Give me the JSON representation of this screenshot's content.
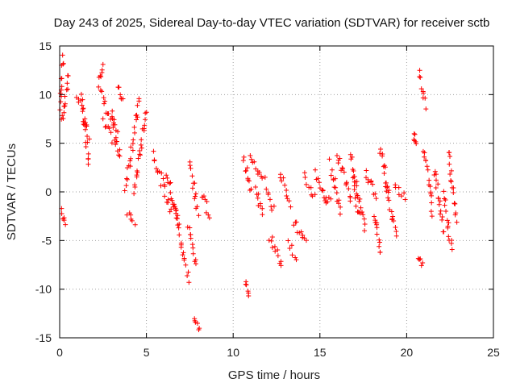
{
  "chart_data": {
    "type": "scatter",
    "title": "Day 243 of 2025, Sidereal Day-to-day VTEC variation (SDTVAR) for receiver sctb",
    "xlabel": "GPS time / hours",
    "ylabel": "SDTVAR / TECUs",
    "xlim": [
      0,
      25
    ],
    "ylim": [
      -15,
      15
    ],
    "xticks": [
      0,
      5,
      10,
      15,
      20,
      25
    ],
    "yticks": [
      -15,
      -10,
      -5,
      0,
      5,
      10,
      15
    ],
    "grid": true,
    "marker": "+",
    "color": "#ff0000",
    "series_segments": [
      {
        "name": "s1",
        "x": [
          0.0,
          0.18
        ],
        "y": [
          7.5,
          14.0
        ]
      },
      {
        "name": "s2",
        "x": [
          0.1,
          0.35
        ],
        "y": [
          -2.0,
          -3.2
        ]
      },
      {
        "name": "s3",
        "x": [
          0.15,
          0.5
        ],
        "y": [
          7.0,
          12.0
        ]
      },
      {
        "name": "s4",
        "x": [
          1.0,
          1.7
        ],
        "y": [
          10.0,
          5.5
        ]
      },
      {
        "name": "s5",
        "x": [
          1.3,
          1.7
        ],
        "y": [
          9.5,
          3.0
        ]
      },
      {
        "name": "s6",
        "x": [
          2.3,
          2.5
        ],
        "y": [
          12.0,
          13.2
        ]
      },
      {
        "name": "s7",
        "x": [
          2.3,
          3.3
        ],
        "y": [
          10.5,
          6.0
        ]
      },
      {
        "name": "s8",
        "x": [
          2.5,
          3.2
        ],
        "y": [
          7.0,
          5.0
        ]
      },
      {
        "name": "s9",
        "x": [
          3.0,
          3.5
        ],
        "y": [
          8.0,
          3.5
        ]
      },
      {
        "name": "s10",
        "x": [
          3.4,
          3.6
        ],
        "y": [
          10.5,
          9.5
        ]
      },
      {
        "name": "s11",
        "x": [
          3.8,
          4.6
        ],
        "y": [
          0.5,
          9.5
        ]
      },
      {
        "name": "s12",
        "x": [
          3.9,
          4.3
        ],
        "y": [
          -2.0,
          -3.5
        ]
      },
      {
        "name": "s13",
        "x": [
          4.3,
          5.0
        ],
        "y": [
          0.0,
          8.5
        ]
      },
      {
        "name": "s14",
        "x": [
          5.4,
          6.4
        ],
        "y": [
          4.0,
          -2.0
        ]
      },
      {
        "name": "s15",
        "x": [
          6.2,
          6.8
        ],
        "y": [
          2.0,
          -3.0
        ]
      },
      {
        "name": "s16",
        "x": [
          6.6,
          7.4
        ],
        "y": [
          -1.0,
          -9.0
        ]
      },
      {
        "name": "s17",
        "x": [
          7.4,
          7.9
        ],
        "y": [
          -3.5,
          -7.5
        ]
      },
      {
        "name": "s18",
        "x": [
          7.5,
          8.0
        ],
        "y": [
          3.0,
          -2.0
        ]
      },
      {
        "name": "s19",
        "x": [
          7.8,
          8.0
        ],
        "y": [
          -13.0,
          -14.2
        ]
      },
      {
        "name": "s20",
        "x": [
          8.2,
          8.6
        ],
        "y": [
          0.0,
          -2.5
        ]
      },
      {
        "name": "s21",
        "x": [
          10.6,
          11.0
        ],
        "y": [
          3.5,
          0.0
        ]
      },
      {
        "name": "s22",
        "x": [
          10.7,
          10.9
        ],
        "y": [
          -9.5,
          -10.3
        ]
      },
      {
        "name": "s23",
        "x": [
          11.0,
          11.8
        ],
        "y": [
          4.0,
          1.0
        ]
      },
      {
        "name": "s24",
        "x": [
          11.3,
          11.7
        ],
        "y": [
          0.5,
          -2.5
        ]
      },
      {
        "name": "s25",
        "x": [
          11.9,
          12.3
        ],
        "y": [
          0.0,
          -2.0
        ]
      },
      {
        "name": "s26",
        "x": [
          12.1,
          12.8
        ],
        "y": [
          -4.5,
          -7.5
        ]
      },
      {
        "name": "s27",
        "x": [
          12.7,
          13.3
        ],
        "y": [
          2.0,
          -1.0
        ]
      },
      {
        "name": "s28",
        "x": [
          13.2,
          13.6
        ],
        "y": [
          -5.5,
          -6.5
        ]
      },
      {
        "name": "s29",
        "x": [
          13.5,
          14.2
        ],
        "y": [
          -3.0,
          -5.5
        ]
      },
      {
        "name": "s30",
        "x": [
          14.1,
          14.7
        ],
        "y": [
          1.5,
          -0.5
        ]
      },
      {
        "name": "s31",
        "x": [
          14.7,
          15.3
        ],
        "y": [
          2.0,
          -0.5
        ]
      },
      {
        "name": "s32",
        "x": [
          15.2,
          15.6
        ],
        "y": [
          -0.5,
          -1.2
        ]
      },
      {
        "name": "s33",
        "x": [
          15.6,
          16.2
        ],
        "y": [
          3.0,
          -2.0
        ]
      },
      {
        "name": "s34",
        "x": [
          16.0,
          16.8
        ],
        "y": [
          4.0,
          -1.0
        ]
      },
      {
        "name": "s35",
        "x": [
          16.8,
          17.2
        ],
        "y": [
          4.0,
          -2.5
        ]
      },
      {
        "name": "s36",
        "x": [
          17.0,
          17.6
        ],
        "y": [
          1.5,
          -4.0
        ]
      },
      {
        "name": "s37",
        "x": [
          17.6,
          18.3
        ],
        "y": [
          2.0,
          -0.5
        ]
      },
      {
        "name": "s38",
        "x": [
          18.1,
          18.5
        ],
        "y": [
          -2.0,
          -6.5
        ]
      },
      {
        "name": "s39",
        "x": [
          18.5,
          18.9
        ],
        "y": [
          4.5,
          0.0
        ]
      },
      {
        "name": "s40",
        "x": [
          18.8,
          19.4
        ],
        "y": [
          1.0,
          -4.5
        ]
      },
      {
        "name": "s41",
        "x": [
          19.3,
          19.9
        ],
        "y": [
          0.5,
          -0.5
        ]
      },
      {
        "name": "s42",
        "x": [
          20.4,
          20.5
        ],
        "y": [
          5.8,
          5.3
        ]
      },
      {
        "name": "s43",
        "x": [
          20.7,
          21.1
        ],
        "y": [
          12.2,
          9.0
        ]
      },
      {
        "name": "s44",
        "x": [
          20.7,
          20.9
        ],
        "y": [
          -6.5,
          -7.2
        ]
      },
      {
        "name": "s45",
        "x": [
          21.0,
          21.5
        ],
        "y": [
          4.5,
          -2.0
        ]
      },
      {
        "name": "s46",
        "x": [
          21.6,
          22.1
        ],
        "y": [
          2.5,
          -4.0
        ]
      },
      {
        "name": "s47",
        "x": [
          22.1,
          22.6
        ],
        "y": [
          0.0,
          -6.0
        ]
      },
      {
        "name": "s48",
        "x": [
          22.4,
          22.9
        ],
        "y": [
          4.0,
          -3.0
        ]
      }
    ]
  }
}
